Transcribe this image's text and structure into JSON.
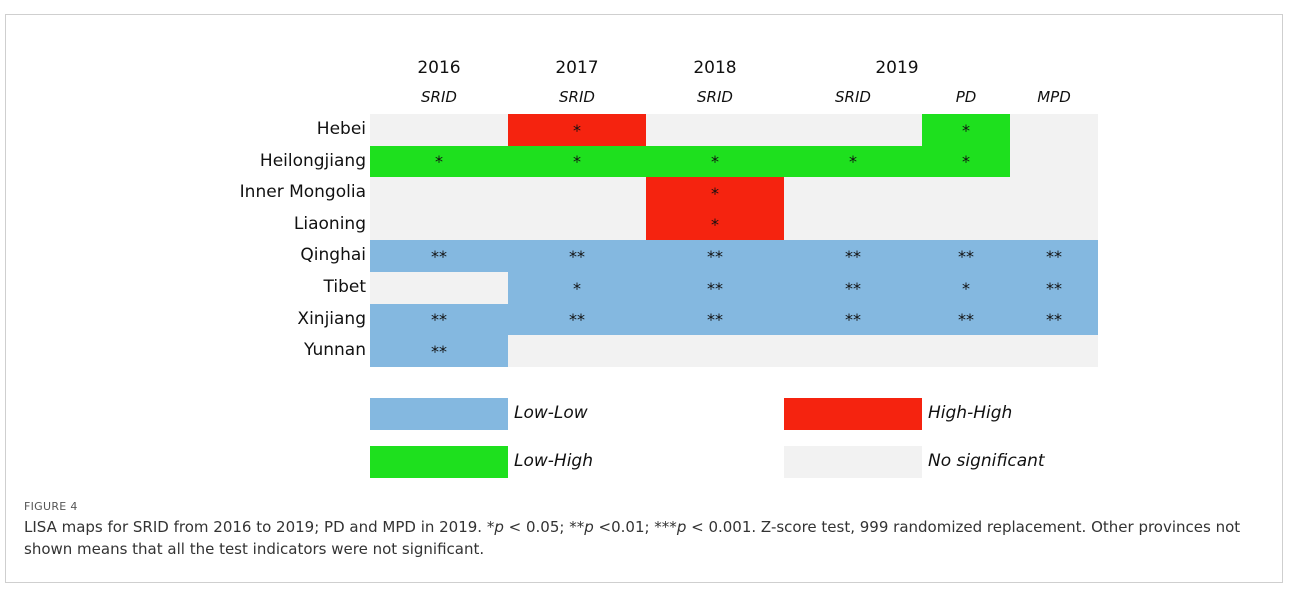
{
  "figure": {
    "years": [
      "2016",
      "2017",
      "2018",
      "2019"
    ],
    "measures": [
      "SRID",
      "SRID",
      "SRID",
      "SRID",
      "PD",
      "MPD"
    ],
    "rows": [
      {
        "label": "Hebei",
        "cells": [
          {
            "color": "#f2f2f2"
          },
          {
            "color": "#f5230f",
            "text": "*"
          },
          {
            "color": "#f2f2f2"
          },
          {
            "color": "#f2f2f2"
          },
          {
            "color": "#1ee01e",
            "text": "*"
          },
          {
            "color": "#f2f2f2"
          }
        ]
      },
      {
        "label": "Heilongjiang",
        "cells": [
          {
            "color": "#1ee01e",
            "text": "*"
          },
          {
            "color": "#1ee01e",
            "text": "*"
          },
          {
            "color": "#1ee01e",
            "text": "*"
          },
          {
            "color": "#1ee01e",
            "text": "*"
          },
          {
            "color": "#1ee01e",
            "text": "*"
          },
          {
            "color": "#f2f2f2"
          }
        ]
      },
      {
        "label": "Inner Mongolia",
        "cells": [
          {
            "color": "#f2f2f2"
          },
          {
            "color": "#f2f2f2"
          },
          {
            "color": "#f5230f",
            "text": "*"
          },
          {
            "color": "#f2f2f2"
          },
          {
            "color": "#f2f2f2"
          },
          {
            "color": "#f2f2f2"
          }
        ]
      },
      {
        "label": "Liaoning",
        "cells": [
          {
            "color": "#f2f2f2"
          },
          {
            "color": "#f2f2f2"
          },
          {
            "color": "#f5230f",
            "text": "*"
          },
          {
            "color": "#f2f2f2"
          },
          {
            "color": "#f2f2f2"
          },
          {
            "color": "#f2f2f2"
          }
        ]
      },
      {
        "label": "Qinghai",
        "cells": [
          {
            "color": "#84b8e0",
            "text": "**"
          },
          {
            "color": "#84b8e0",
            "text": "**"
          },
          {
            "color": "#84b8e0",
            "text": "**"
          },
          {
            "color": "#84b8e0",
            "text": "**"
          },
          {
            "color": "#84b8e0",
            "text": "**"
          },
          {
            "color": "#84b8e0",
            "text": "**"
          }
        ]
      },
      {
        "label": "Tibet",
        "cells": [
          {
            "color": "#f2f2f2"
          },
          {
            "color": "#84b8e0",
            "text": "*"
          },
          {
            "color": "#84b8e0",
            "text": "**"
          },
          {
            "color": "#84b8e0",
            "text": "**"
          },
          {
            "color": "#84b8e0",
            "text": "*"
          },
          {
            "color": "#84b8e0",
            "text": "**"
          }
        ]
      },
      {
        "label": "Xinjiang",
        "cells": [
          {
            "color": "#84b8e0",
            "text": "**"
          },
          {
            "color": "#84b8e0",
            "text": "**"
          },
          {
            "color": "#84b8e0",
            "text": "**"
          },
          {
            "color": "#84b8e0",
            "text": "**"
          },
          {
            "color": "#84b8e0",
            "text": "**"
          },
          {
            "color": "#84b8e0",
            "text": "**"
          }
        ]
      },
      {
        "label": "Yunnan",
        "cells": [
          {
            "color": "#84b8e0",
            "text": "**"
          },
          {
            "color": "#f2f2f2"
          },
          {
            "color": "#f2f2f2"
          },
          {
            "color": "#f2f2f2"
          },
          {
            "color": "#f2f2f2"
          },
          {
            "color": "#f2f2f2"
          }
        ]
      }
    ],
    "legend": [
      {
        "label": "Low-Low",
        "color": "#84b8e0"
      },
      {
        "label": "High-High",
        "color": "#f5230f"
      },
      {
        "label": "Low-High",
        "color": "#1ee01e"
      },
      {
        "label": "No significant",
        "color": "#f2f2f2"
      }
    ],
    "caption_label": "FIGURE 4",
    "caption": [
      "LISA maps for SRID from 2016 to 2019; PD and MPD in 2019. *",
      "p",
      " < 0.05; **",
      "p",
      " <0.01; ***",
      "p",
      " < 0.001. Z-score test, 999 randomized replacement. Other provinces not shown means that all the test indicators were not significant."
    ]
  }
}
